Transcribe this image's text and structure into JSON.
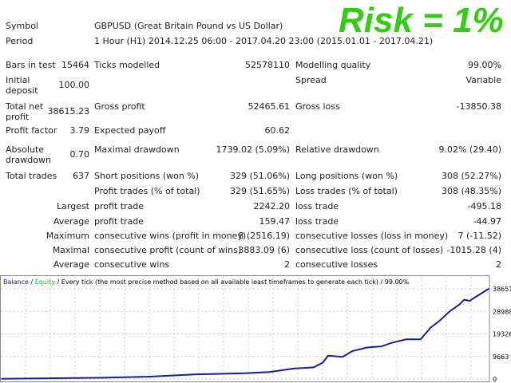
{
  "banner": "Risk = 1%",
  "symbol": {
    "label": "Symbol",
    "value": "GBPUSD (Great Britain Pound vs US Dollar)"
  },
  "period": {
    "label": "Period",
    "value": "1 Hour (H1) 2014.12.25 06:00 - 2017.04.20 23:00 (2015.01.01 - 2017.04.21)"
  },
  "rows": [
    {
      "l1": "Bars in test",
      "v1": "15464",
      "l2": "Ticks modelled",
      "v2": "52578110",
      "l3": "Modelling quality",
      "v3": "99.00%"
    },
    {
      "l1": "Initial deposit",
      "v1": "100.00",
      "l2": "",
      "v2": "",
      "l3": "Spread",
      "v3": "Variable"
    },
    {
      "l1": "Total net profit",
      "v1": "38615.23",
      "l2": "Gross profit",
      "v2": "52465.61",
      "l3": "Gross loss",
      "v3": "-13850.38"
    },
    {
      "l1": "Profit factor",
      "v1": "3.79",
      "l2": "Expected payoff",
      "v2": "60.62",
      "l3": "",
      "v3": ""
    },
    {
      "l1": "Absolute drawdown",
      "v1": "0.70",
      "l2": "Maximal drawdown",
      "v2": "1739.02 (5.09%)",
      "l3": "Relative drawdown",
      "v3": "9.02% (29.40)"
    },
    {
      "l1": "Total trades",
      "v1": "637",
      "l2": "Short positions (won %)",
      "v2": "329 (51.06%)",
      "l3": "Long positions (won %)",
      "v3": "308 (52.27%)"
    },
    {
      "l1": "",
      "v1": "",
      "l2": "Profit trades (% of total)",
      "v2": "329 (51.65%)",
      "l3": "Loss trades (% of total)",
      "v3": "308 (48.35%)"
    },
    {
      "l1": "Largest",
      "v1": "",
      "l2": "profit trade",
      "v2": "2242.20",
      "l3": "loss trade",
      "v3": "-495.18"
    },
    {
      "l1": "Average",
      "v1": "",
      "l2": "profit trade",
      "v2": "159.47",
      "l3": "loss trade",
      "v3": "-44.97"
    },
    {
      "l1": "Maximum",
      "v1": "",
      "l2": "consecutive wins (profit in money)",
      "v2": "8 (2516.19)",
      "l3": "consecutive losses (loss in money)",
      "v3": "7 (-11.52)"
    },
    {
      "l1": "Maximal",
      "v1": "",
      "l2": "consecutive profit (count of wins)",
      "v2": "3883.09 (6)",
      "l3": "consecutive loss (count of losses)",
      "v3": "-1015.28 (4)"
    },
    {
      "l1": "Average",
      "v1": "",
      "l2": "consecutive wins",
      "v2": "2",
      "l3": "consecutive losses",
      "v3": "2"
    }
  ],
  "chart_data": {
    "type": "line",
    "legend": {
      "balance": "Balance",
      "equity": "Equity",
      "rest": "/ Every tick (the most precise method based on all available least timeframes to generate each tick) / 99.00%"
    },
    "colors": {
      "balance": "#1a1aa6",
      "equity": "#22bb22",
      "grid": "#c8c8c8"
    },
    "ylim": [
      0,
      38651
    ],
    "yticks": [
      "38651",
      "28988",
      "19326",
      "9663",
      "0"
    ],
    "xlabel": "",
    "ylabel": "",
    "grid": true,
    "series": [
      {
        "name": "Balance",
        "x": [
          0,
          121,
          191,
          255,
          318,
          350,
          382,
          408,
          420,
          427,
          446,
          459,
          478,
          497,
          510,
          529,
          548,
          561,
          573,
          586,
          599,
          605,
          612,
          624,
          637
        ],
        "values": [
          100,
          500,
          1000,
          2000,
          2500,
          3000,
          4500,
          5000,
          7000,
          10000,
          9500,
          12000,
          13500,
          14000,
          15500,
          17000,
          17000,
          22000,
          25000,
          29000,
          32000,
          34000,
          33500,
          36000,
          38651
        ]
      }
    ]
  }
}
